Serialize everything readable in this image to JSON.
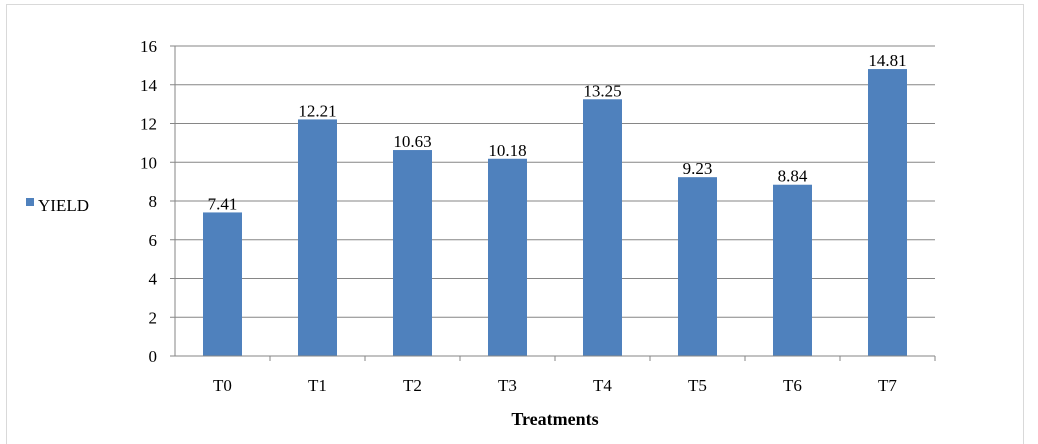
{
  "chart_data": {
    "type": "bar",
    "categories": [
      "T0",
      "T1",
      "T2",
      "T3",
      "T4",
      "T5",
      "T6",
      "T7"
    ],
    "series": [
      {
        "name": "YIELD",
        "values": [
          7.41,
          12.21,
          10.63,
          10.18,
          13.25,
          9.23,
          8.84,
          14.81
        ],
        "color": "#4f81bd"
      }
    ],
    "xlabel": "Treatments",
    "ylabel": "",
    "ylim": [
      0,
      16
    ],
    "yticks": [
      0,
      2,
      4,
      6,
      8,
      10,
      12,
      14,
      16
    ],
    "grid": true,
    "legend": "left",
    "data_labels": true
  }
}
